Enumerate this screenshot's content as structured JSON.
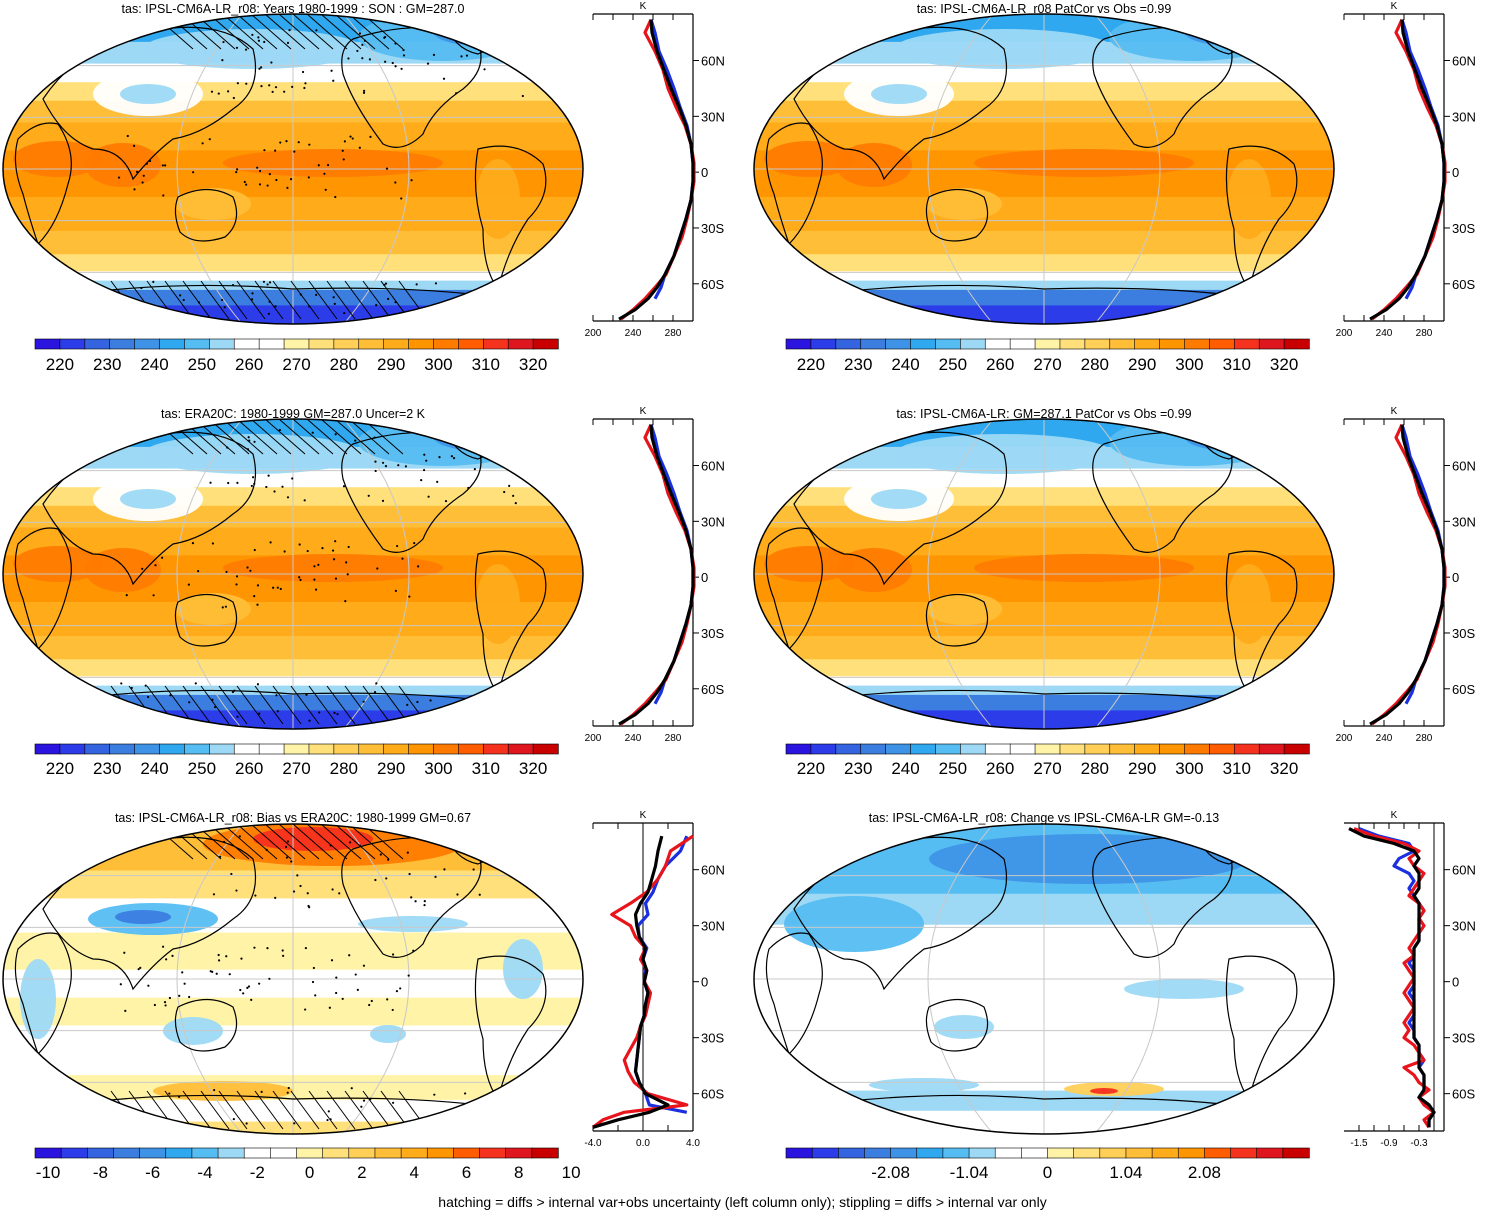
{
  "footer_note": "hatching = diffs > internal var+obs uncertainty (left column only); stippling = diffs > internal var only",
  "profile_common": {
    "unit": "K",
    "lat_ticks": [
      "60N",
      "30N",
      "0",
      "30S",
      "60S"
    ],
    "lat_values": [
      60,
      30,
      0,
      -30,
      -60
    ],
    "lat_range": [
      -80,
      85
    ]
  },
  "colors": {
    "obs_line": "#e8141c",
    "model_line": "#000000",
    "alt_line": "#1a2fe0",
    "temp_palette": [
      "#2b14e0",
      "#2c3ce8",
      "#3464e0",
      "#3b7ee0",
      "#3f93e6",
      "#2fa8ef",
      "#56bdf2",
      "#9dd9f5",
      "#ffffff",
      "#ffffff",
      "#fff3a8",
      "#ffe07a",
      "#ffcf57",
      "#ffbe38",
      "#ffab1a",
      "#ff9500",
      "#ff7b00",
      "#ff5d00",
      "#f5321e",
      "#e0161f",
      "#c80000"
    ],
    "diff_palette": [
      "#2b14e0",
      "#2c3ce8",
      "#3464e0",
      "#3b7ee0",
      "#3f93e6",
      "#2fa8ef",
      "#56bdf2",
      "#9dd9f5",
      "#ffffff",
      "#ffffff",
      "#fff3a8",
      "#ffe07a",
      "#ffcf57",
      "#ffbe38",
      "#ffab1a",
      "#ff9500",
      "#ff5d00",
      "#f5321e",
      "#e0161f",
      "#c80000"
    ]
  },
  "chart_data": [
    {
      "id": "p1",
      "type": "heatmap",
      "title": "tas: IPSL-CM6A-LR_r08: Years 1980-1999 : SON : GM=287.0",
      "field": "absolute",
      "hatching": true,
      "stippling": true,
      "colorbar": {
        "labels": [
          "220",
          "230",
          "240",
          "250",
          "260",
          "270",
          "280",
          "290",
          "300",
          "310",
          "320"
        ]
      },
      "profile": {
        "xlim": [
          200,
          300
        ],
        "xtick_labels": [
          "200",
          "240",
          "280"
        ],
        "lat": [
          82,
          75,
          65,
          55,
          45,
          35,
          25,
          15,
          5,
          -5,
          -15,
          -25,
          -35,
          -45,
          -55,
          -62,
          -68,
          -74,
          -79
        ],
        "series": [
          {
            "name": "",
            "color": "#e8141c",
            "values": [
              258,
              252,
              262,
              270,
              275,
              283,
              292,
              298,
              301,
              301,
              298,
              294,
              289,
              281,
              273,
              262,
              252,
              240,
              228
            ]
          },
          {
            "name": "",
            "color": "#000000",
            "values": [
              258,
              259,
              264,
              271,
              278,
              286,
              293,
              298,
              300,
              300,
              298,
              293,
              287,
              281,
              272,
              264,
              255,
              242,
              226
            ]
          },
          {
            "name": "",
            "color": "#1a2fe0",
            "values": [
              258,
              262,
              266,
              274,
              281,
              287,
              294,
              298,
              300,
              300,
              298,
              293,
              287,
              281,
              272,
              268,
              262,
              null,
              null
            ]
          }
        ]
      }
    },
    {
      "id": "p2",
      "type": "heatmap",
      "title": "tas: IPSL-CM6A-LR_r08 PatCor vs Obs =0.99",
      "field": "absolute",
      "hatching": false,
      "stippling": false,
      "colorbar": {
        "labels": [
          "220",
          "230",
          "240",
          "250",
          "260",
          "270",
          "280",
          "290",
          "300",
          "310",
          "320"
        ]
      },
      "profile": {
        "xlim": [
          200,
          300
        ],
        "xtick_labels": [
          "200",
          "240",
          "280"
        ],
        "lat": [
          82,
          75,
          65,
          55,
          45,
          35,
          25,
          15,
          5,
          -5,
          -15,
          -25,
          -35,
          -45,
          -55,
          -62,
          -68,
          -74,
          -79
        ],
        "series": [
          {
            "name": "",
            "color": "#e8141c",
            "values": [
              258,
              252,
              262,
              270,
              275,
              283,
              292,
              298,
              301,
              301,
              298,
              294,
              289,
              281,
              273,
              262,
              252,
              240,
              228
            ]
          },
          {
            "name": "",
            "color": "#000000",
            "values": [
              258,
              259,
              264,
              271,
              278,
              286,
              293,
              298,
              300,
              300,
              298,
              293,
              287,
              281,
              272,
              264,
              255,
              242,
              226
            ]
          },
          {
            "name": "",
            "color": "#1a2fe0",
            "values": [
              258,
              262,
              266,
              274,
              281,
              287,
              294,
              298,
              300,
              300,
              298,
              293,
              287,
              281,
              272,
              268,
              262,
              null,
              null
            ]
          }
        ]
      }
    },
    {
      "id": "p3",
      "type": "heatmap",
      "title": "tas: ERA20C: 1980-1999 GM=287.0 Uncer=2 K",
      "field": "absolute",
      "hatching": true,
      "stippling": true,
      "colorbar": {
        "labels": [
          "220",
          "230",
          "240",
          "250",
          "260",
          "270",
          "280",
          "290",
          "300",
          "310",
          "320"
        ]
      },
      "profile": {
        "xlim": [
          200,
          300
        ],
        "xtick_labels": [
          "200",
          "240",
          "280"
        ],
        "lat": [
          82,
          75,
          65,
          55,
          45,
          35,
          25,
          15,
          5,
          -5,
          -15,
          -25,
          -35,
          -45,
          -55,
          -62,
          -68,
          -74,
          -79
        ],
        "series": [
          {
            "name": "",
            "color": "#e8141c",
            "values": [
              258,
              252,
              262,
              270,
              275,
              283,
              292,
              298,
              301,
              301,
              298,
              294,
              289,
              281,
              273,
              262,
              252,
              240,
              228
            ]
          },
          {
            "name": "",
            "color": "#000000",
            "values": [
              258,
              259,
              264,
              271,
              278,
              286,
              293,
              298,
              300,
              300,
              298,
              293,
              287,
              281,
              272,
              264,
              255,
              242,
              226
            ]
          },
          {
            "name": "",
            "color": "#1a2fe0",
            "values": [
              258,
              262,
              266,
              274,
              281,
              287,
              294,
              298,
              300,
              300,
              298,
              293,
              287,
              281,
              272,
              268,
              262,
              null,
              null
            ]
          }
        ]
      }
    },
    {
      "id": "p4",
      "type": "heatmap",
      "title": "tas: IPSL-CM6A-LR: GM=287.1 PatCor vs Obs =0.99",
      "field": "absolute",
      "hatching": false,
      "stippling": false,
      "colorbar": {
        "labels": [
          "220",
          "230",
          "240",
          "250",
          "260",
          "270",
          "280",
          "290",
          "300",
          "310",
          "320"
        ]
      },
      "profile": {
        "xlim": [
          200,
          300
        ],
        "xtick_labels": [
          "200",
          "240",
          "280"
        ],
        "lat": [
          82,
          75,
          65,
          55,
          45,
          35,
          25,
          15,
          5,
          -5,
          -15,
          -25,
          -35,
          -45,
          -55,
          -62,
          -68,
          -74,
          -79
        ],
        "series": [
          {
            "name": "",
            "color": "#e8141c",
            "values": [
              258,
              252,
              262,
              270,
              275,
              283,
              292,
              298,
              301,
              301,
              298,
              294,
              289,
              281,
              273,
              262,
              252,
              240,
              228
            ]
          },
          {
            "name": "",
            "color": "#000000",
            "values": [
              258,
              259,
              264,
              271,
              278,
              286,
              293,
              298,
              300,
              300,
              298,
              293,
              287,
              281,
              272,
              264,
              255,
              242,
              226
            ]
          },
          {
            "name": "",
            "color": "#1a2fe0",
            "values": [
              258,
              262,
              266,
              274,
              281,
              287,
              294,
              298,
              300,
              300,
              298,
              293,
              287,
              281,
              272,
              268,
              262,
              null,
              null
            ]
          }
        ]
      }
    },
    {
      "id": "p5",
      "type": "heatmap",
      "title": "tas: IPSL-CM6A-LR_r08: Bias vs ERA20C: 1980-1999  GM=0.67",
      "field": "bias",
      "hatching": true,
      "stippling": true,
      "colorbar": {
        "labels": [
          "-10",
          "-8",
          "-6",
          "-4",
          "-2",
          "0",
          "2",
          "4",
          "6",
          "8",
          "10"
        ]
      },
      "profile": {
        "xlim": [
          -4,
          4
        ],
        "xtick_labels": [
          "-4.0",
          "0.0",
          "4.0"
        ],
        "lat": [
          78,
          70,
          62,
          55,
          48,
          42,
          36,
          30,
          24,
          18,
          12,
          6,
          0,
          -6,
          -12,
          -18,
          -24,
          -30,
          -36,
          -42,
          -48,
          -54,
          -60,
          -66,
          -70,
          -74,
          -78
        ],
        "series": [
          {
            "name": "",
            "color": "#e8141c",
            "values": [
              4.0,
              2.2,
              1.8,
              1.2,
              0.3,
              -1.0,
              -2.5,
              -1.0,
              -0.6,
              0.2,
              -0.2,
              0.3,
              0.1,
              0.6,
              0.4,
              0.2,
              -0.2,
              -0.5,
              -1.0,
              -1.5,
              -1.2,
              -0.7,
              0.4,
              3.5,
              -1.5,
              -3.2,
              -4.0
            ]
          },
          {
            "name": "",
            "color": "#000000",
            "values": [
              1.5,
              1.2,
              1.0,
              0.7,
              0.4,
              -0.2,
              -0.6,
              -0.5,
              -0.3,
              0.2,
              0.0,
              0.3,
              0.1,
              0.4,
              0.2,
              0.1,
              -0.2,
              -0.3,
              -0.4,
              -0.5,
              -0.6,
              -0.3,
              0.2,
              2.0,
              0.5,
              -2.0,
              -4.0
            ]
          },
          {
            "name": "",
            "color": "#1a2fe0",
            "values": [
              3.5,
              3.0,
              1.8,
              1.2,
              0.8,
              0.2,
              0.4,
              -0.4,
              -0.3,
              0.3,
              0.0,
              0.2,
              0.1,
              0.4,
              0.2,
              0.1,
              -0.2,
              -0.3,
              -0.4,
              -0.5,
              -0.6,
              -0.3,
              0.2,
              0.5,
              3.5,
              null,
              null
            ]
          }
        ]
      }
    },
    {
      "id": "p6",
      "type": "heatmap",
      "title": "tas: IPSL-CM6A-LR_r08: Change vs IPSL-CM6A-LR GM=-0.13",
      "field": "change",
      "hatching": false,
      "stippling": false,
      "colorbar": {
        "labels": [
          "-2.08",
          "-1.04",
          "0",
          "1.04",
          "2.08"
        ]
      },
      "profile": {
        "xlim": [
          -1.8,
          0.2
        ],
        "xtick_labels": [
          "-1.5",
          "-0.9",
          "-0.3"
        ],
        "lat": [
          82,
          78,
          74,
          70,
          66,
          62,
          58,
          54,
          50,
          46,
          42,
          38,
          34,
          30,
          26,
          22,
          18,
          14,
          10,
          6,
          2,
          -2,
          -6,
          -10,
          -14,
          -18,
          -22,
          -26,
          -30,
          -34,
          -38,
          -42,
          -46,
          -50,
          -54,
          -58,
          -62,
          -66,
          -70,
          -74,
          -78
        ],
        "series": [
          {
            "name": "",
            "color": "#e8141c",
            "values": [
              -1.6,
              -1.2,
              -0.6,
              -0.3,
              -0.5,
              -0.4,
              -0.2,
              -0.3,
              -0.4,
              -0.5,
              -0.3,
              -0.2,
              -0.3,
              -0.2,
              -0.3,
              -0.4,
              -0.5,
              -0.4,
              -0.6,
              -0.5,
              -0.4,
              -0.5,
              -0.6,
              -0.5,
              -0.4,
              -0.5,
              -0.6,
              -0.5,
              -0.6,
              -0.4,
              -0.3,
              -0.2,
              -0.6,
              -0.4,
              -0.3,
              -0.1,
              -0.3,
              -0.2,
              0.0,
              -0.2,
              -0.1
            ]
          },
          {
            "name": "",
            "color": "#000000",
            "values": [
              -1.7,
              -1.4,
              -0.8,
              -0.4,
              -0.3,
              -0.4,
              -0.3,
              -0.3,
              -0.3,
              -0.4,
              -0.3,
              -0.3,
              -0.3,
              -0.3,
              -0.3,
              -0.3,
              -0.4,
              -0.4,
              -0.4,
              -0.4,
              -0.4,
              -0.4,
              -0.4,
              -0.4,
              -0.4,
              -0.4,
              -0.4,
              -0.4,
              -0.4,
              -0.3,
              -0.3,
              -0.3,
              -0.3,
              -0.2,
              -0.2,
              -0.2,
              -0.3,
              -0.1,
              0.0,
              -0.1,
              -0.1
            ]
          },
          {
            "name": "",
            "color": "#1a2fe0",
            "values": [
              -1.5,
              -1.1,
              -0.5,
              -0.4,
              -0.7,
              -0.8,
              -0.5,
              -0.4,
              -0.5,
              -0.4,
              -0.3,
              -0.2,
              -0.3,
              -0.3,
              -0.3,
              -0.3,
              -0.4,
              -0.4,
              -0.5,
              -0.4,
              -0.4,
              -0.4,
              -0.5,
              -0.4,
              -0.4,
              -0.4,
              -0.5,
              -0.4,
              -0.4,
              -0.3,
              -0.3,
              -0.2,
              -0.3,
              -0.2,
              -0.2,
              -0.2,
              -0.3,
              -0.1,
              0.0,
              -0.1,
              -0.1
            ]
          }
        ]
      }
    }
  ]
}
